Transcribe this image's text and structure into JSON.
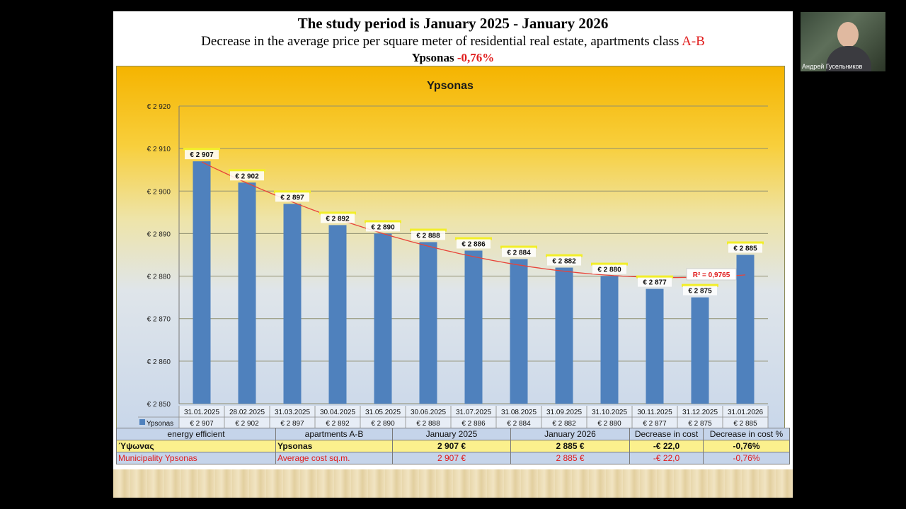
{
  "header": {
    "line1": "The study period is January  2025 - January  2026",
    "line2_prefix": "Decrease in the average price per square meter of residential real estate, apartments class ",
    "line2_class": "A-B",
    "line3_name": "Ypsonas",
    "line3_pct": "-0,76%"
  },
  "chart_data": {
    "type": "bar",
    "title": "Ypsonas",
    "categories": [
      "31.01.2025",
      "28.02.2025",
      "31.03.2025",
      "30.04.2025",
      "31.05.2025",
      "30.06.2025",
      "31.07.2025",
      "31.08.2025",
      "31.09.2025",
      "31.10.2025",
      "30.11.2025",
      "31.12.2025",
      "31.01.2026"
    ],
    "values": [
      2907,
      2902,
      2897,
      2892,
      2890,
      2888,
      2886,
      2884,
      2882,
      2880,
      2877,
      2875,
      2885
    ],
    "value_labels": [
      "€ 2 907",
      "€ 2 902",
      "€ 2 897",
      "€ 2 892",
      "€ 2 890",
      "€ 2 888",
      "€ 2 886",
      "€ 2 884",
      "€ 2 882",
      "€ 2 880",
      "€ 2 877",
      "€ 2 875",
      "€ 2 885"
    ],
    "yticks": [
      "€ 2 850",
      "€ 2 860",
      "€ 2 870",
      "€ 2 880",
      "€ 2 890",
      "€ 2 900",
      "€ 2 910",
      "€ 2 920"
    ],
    "ylim": [
      2850,
      2920
    ],
    "legend_label": "Ypsonas",
    "trendline": "polynomial",
    "r2_label": "R² = 0,9765",
    "bar_color": "#4f81bd",
    "trend_color": "#e8443a",
    "grid": true
  },
  "table": {
    "headers": [
      "energy efficient",
      "apartments A-B",
      "January 2025",
      "January 2026",
      "Decrease in cost",
      "Decrease in cost %"
    ],
    "rows": [
      [
        "Ύψωνας",
        "Ypsonas",
        "2 907 €",
        "2 885 €",
        "-€ 22,0",
        "-0,76%"
      ],
      [
        "Municipality Ypsonas",
        "Average cost sq.m.",
        "2 907 €",
        "2 885 €",
        "-€ 22,0",
        "-0,76%"
      ]
    ]
  },
  "webcam": {
    "name": "Андрей Гусельников"
  }
}
